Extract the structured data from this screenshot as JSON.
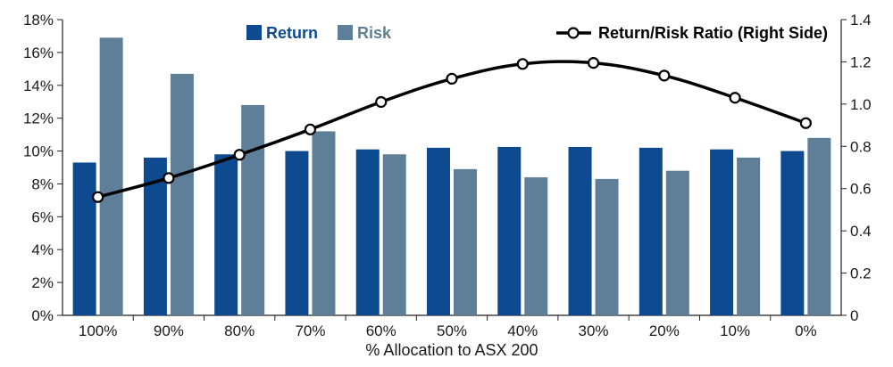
{
  "chart_data": {
    "type": "bar",
    "xlabel": "% Allocation to ASX 200",
    "categories": [
      "100%",
      "90%",
      "80%",
      "70%",
      "60%",
      "50%",
      "40%",
      "30%",
      "20%",
      "10%",
      "0%"
    ],
    "series": [
      {
        "name": "Return",
        "kind": "bar",
        "axis": "left",
        "color": "#0d4a8f",
        "values": [
          9.3,
          9.6,
          9.8,
          10.0,
          10.1,
          10.2,
          10.25,
          10.25,
          10.2,
          10.1,
          10.0
        ]
      },
      {
        "name": "Risk",
        "kind": "bar",
        "axis": "left",
        "color": "#5f7f98",
        "values": [
          16.9,
          14.7,
          12.8,
          11.2,
          9.8,
          8.9,
          8.4,
          8.3,
          8.8,
          9.6,
          10.8
        ]
      },
      {
        "name": "Return/Risk Ratio (Right Side)",
        "kind": "line",
        "axis": "right",
        "color": "#000000",
        "values": [
          0.56,
          0.65,
          0.76,
          0.88,
          1.01,
          1.12,
          1.19,
          1.195,
          1.135,
          1.03,
          0.91
        ]
      }
    ],
    "y_left": {
      "min": 0,
      "max": 18,
      "step": 2,
      "tick_labels": [
        "0%",
        "2%",
        "4%",
        "6%",
        "8%",
        "10%",
        "12%",
        "14%",
        "16%",
        "18%"
      ]
    },
    "y_right": {
      "min": 0,
      "max": 1.4,
      "step": 0.2,
      "tick_labels": [
        "0",
        "0.2",
        "0.4",
        "0.6",
        "0.8",
        "1.0",
        "1.2",
        "1.4"
      ]
    },
    "grid": false,
    "legend": [
      {
        "label": "Return",
        "marker": "square",
        "color": "#0d4a8f",
        "text_color": "#0d4a8f"
      },
      {
        "label": "Risk",
        "marker": "square",
        "color": "#5f7f98",
        "text_color": "#5f7f98"
      },
      {
        "label": "Return/Risk Ratio (Right Side)",
        "marker": "line-circle",
        "color": "#000000",
        "text_color": "#000000"
      }
    ],
    "legend_position": "top"
  }
}
